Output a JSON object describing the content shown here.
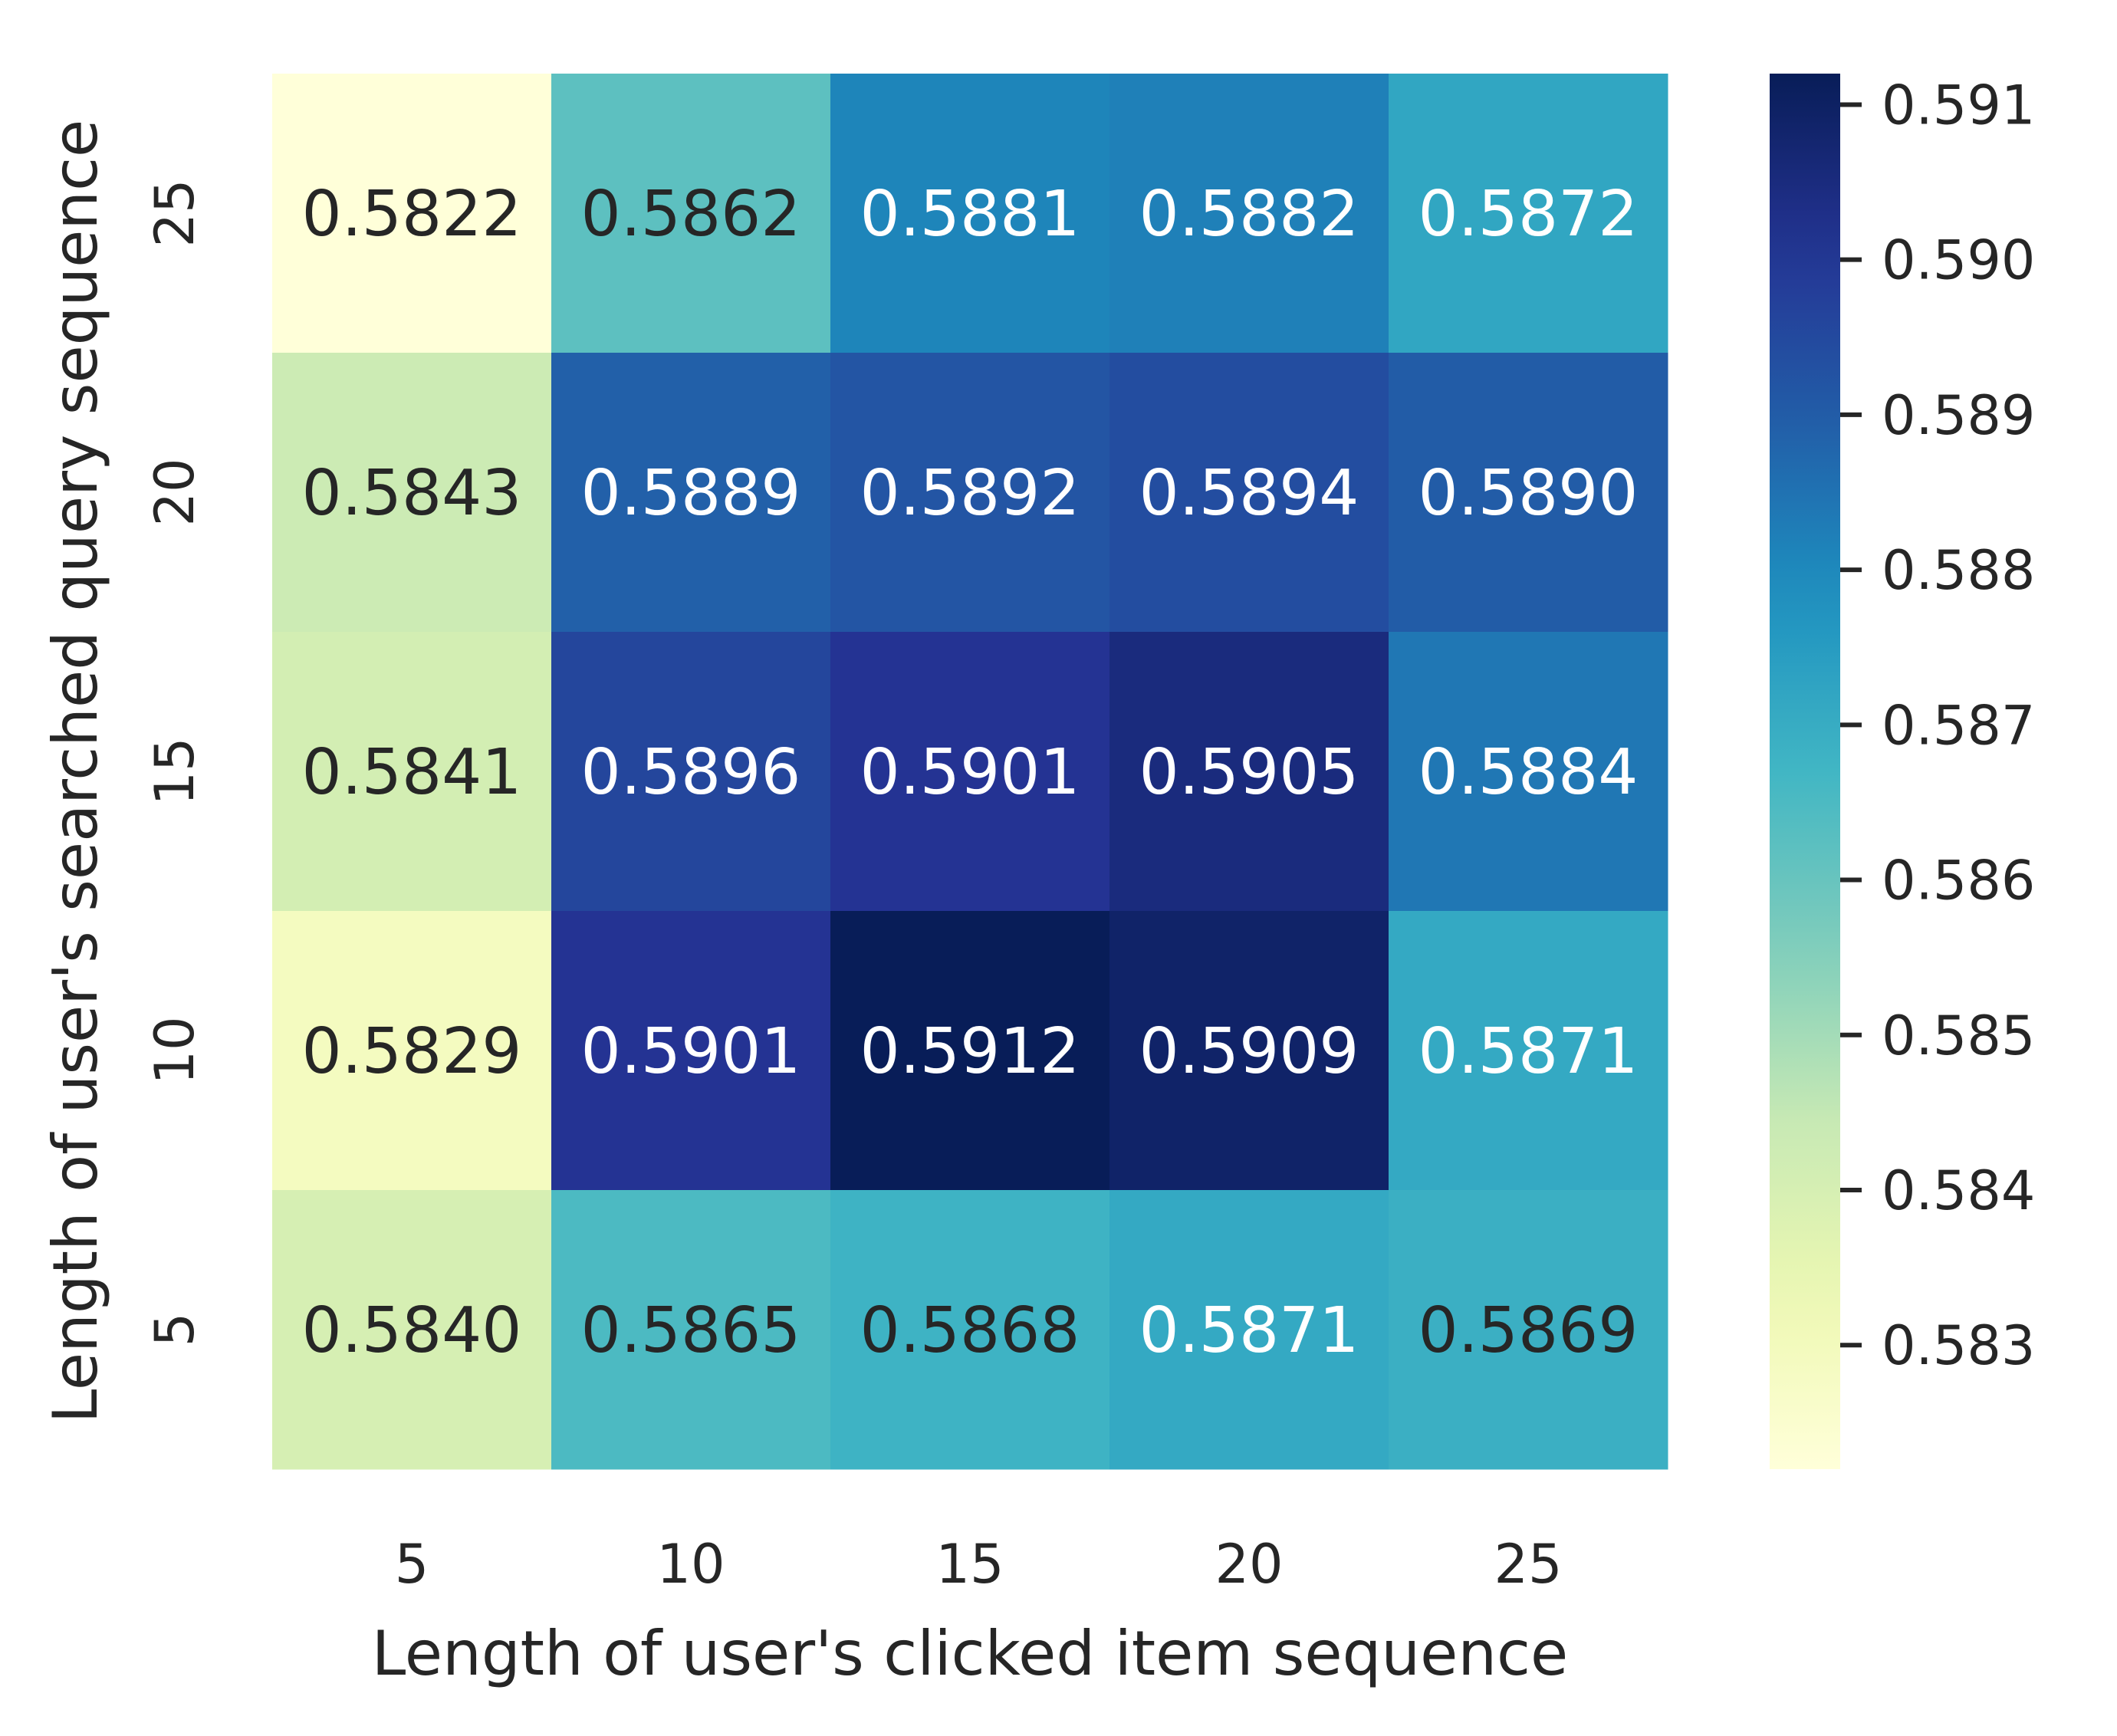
{
  "chart_data": {
    "type": "heatmap",
    "xlabel": "Length of user's clicked item sequence",
    "ylabel": "Length of user's searched query sequence",
    "x_categories": [
      "5",
      "10",
      "15",
      "20",
      "25"
    ],
    "y_categories": [
      "25",
      "20",
      "15",
      "10",
      "5"
    ],
    "values": [
      [
        0.5822,
        0.5862,
        0.5881,
        0.5882,
        0.5872
      ],
      [
        0.5843,
        0.5889,
        0.5892,
        0.5894,
        0.589
      ],
      [
        0.5841,
        0.5896,
        0.5901,
        0.5905,
        0.5884
      ],
      [
        0.5829,
        0.5901,
        0.5912,
        0.5909,
        0.5871
      ],
      [
        0.584,
        0.5865,
        0.5868,
        0.5871,
        0.5869
      ]
    ],
    "cell_labels": [
      [
        "0.5822",
        "0.5862",
        "0.5881",
        "0.5882",
        "0.5872"
      ],
      [
        "0.5843",
        "0.5889",
        "0.5892",
        "0.5894",
        "0.5890"
      ],
      [
        "0.5841",
        "0.5896",
        "0.5901",
        "0.5905",
        "0.5884"
      ],
      [
        "0.5829",
        "0.5901",
        "0.5912",
        "0.5909",
        "0.5871"
      ],
      [
        "0.5840",
        "0.5865",
        "0.5868",
        "0.5871",
        "0.5869"
      ]
    ],
    "colormap": "YlGnBu",
    "colorbar": {
      "vmin": 0.5822,
      "vmax": 0.5912,
      "ticks": [
        0.583,
        0.584,
        0.585,
        0.586,
        0.587,
        0.588,
        0.589,
        0.59,
        0.591
      ],
      "tick_labels": [
        "0.583",
        "0.584",
        "0.585",
        "0.586",
        "0.587",
        "0.588",
        "0.589",
        "0.590",
        "0.591"
      ]
    },
    "colors": {
      "text_dark": "#262626",
      "text_light": "#ffffff",
      "tick": "#262626",
      "background": "#ffffff"
    }
  }
}
